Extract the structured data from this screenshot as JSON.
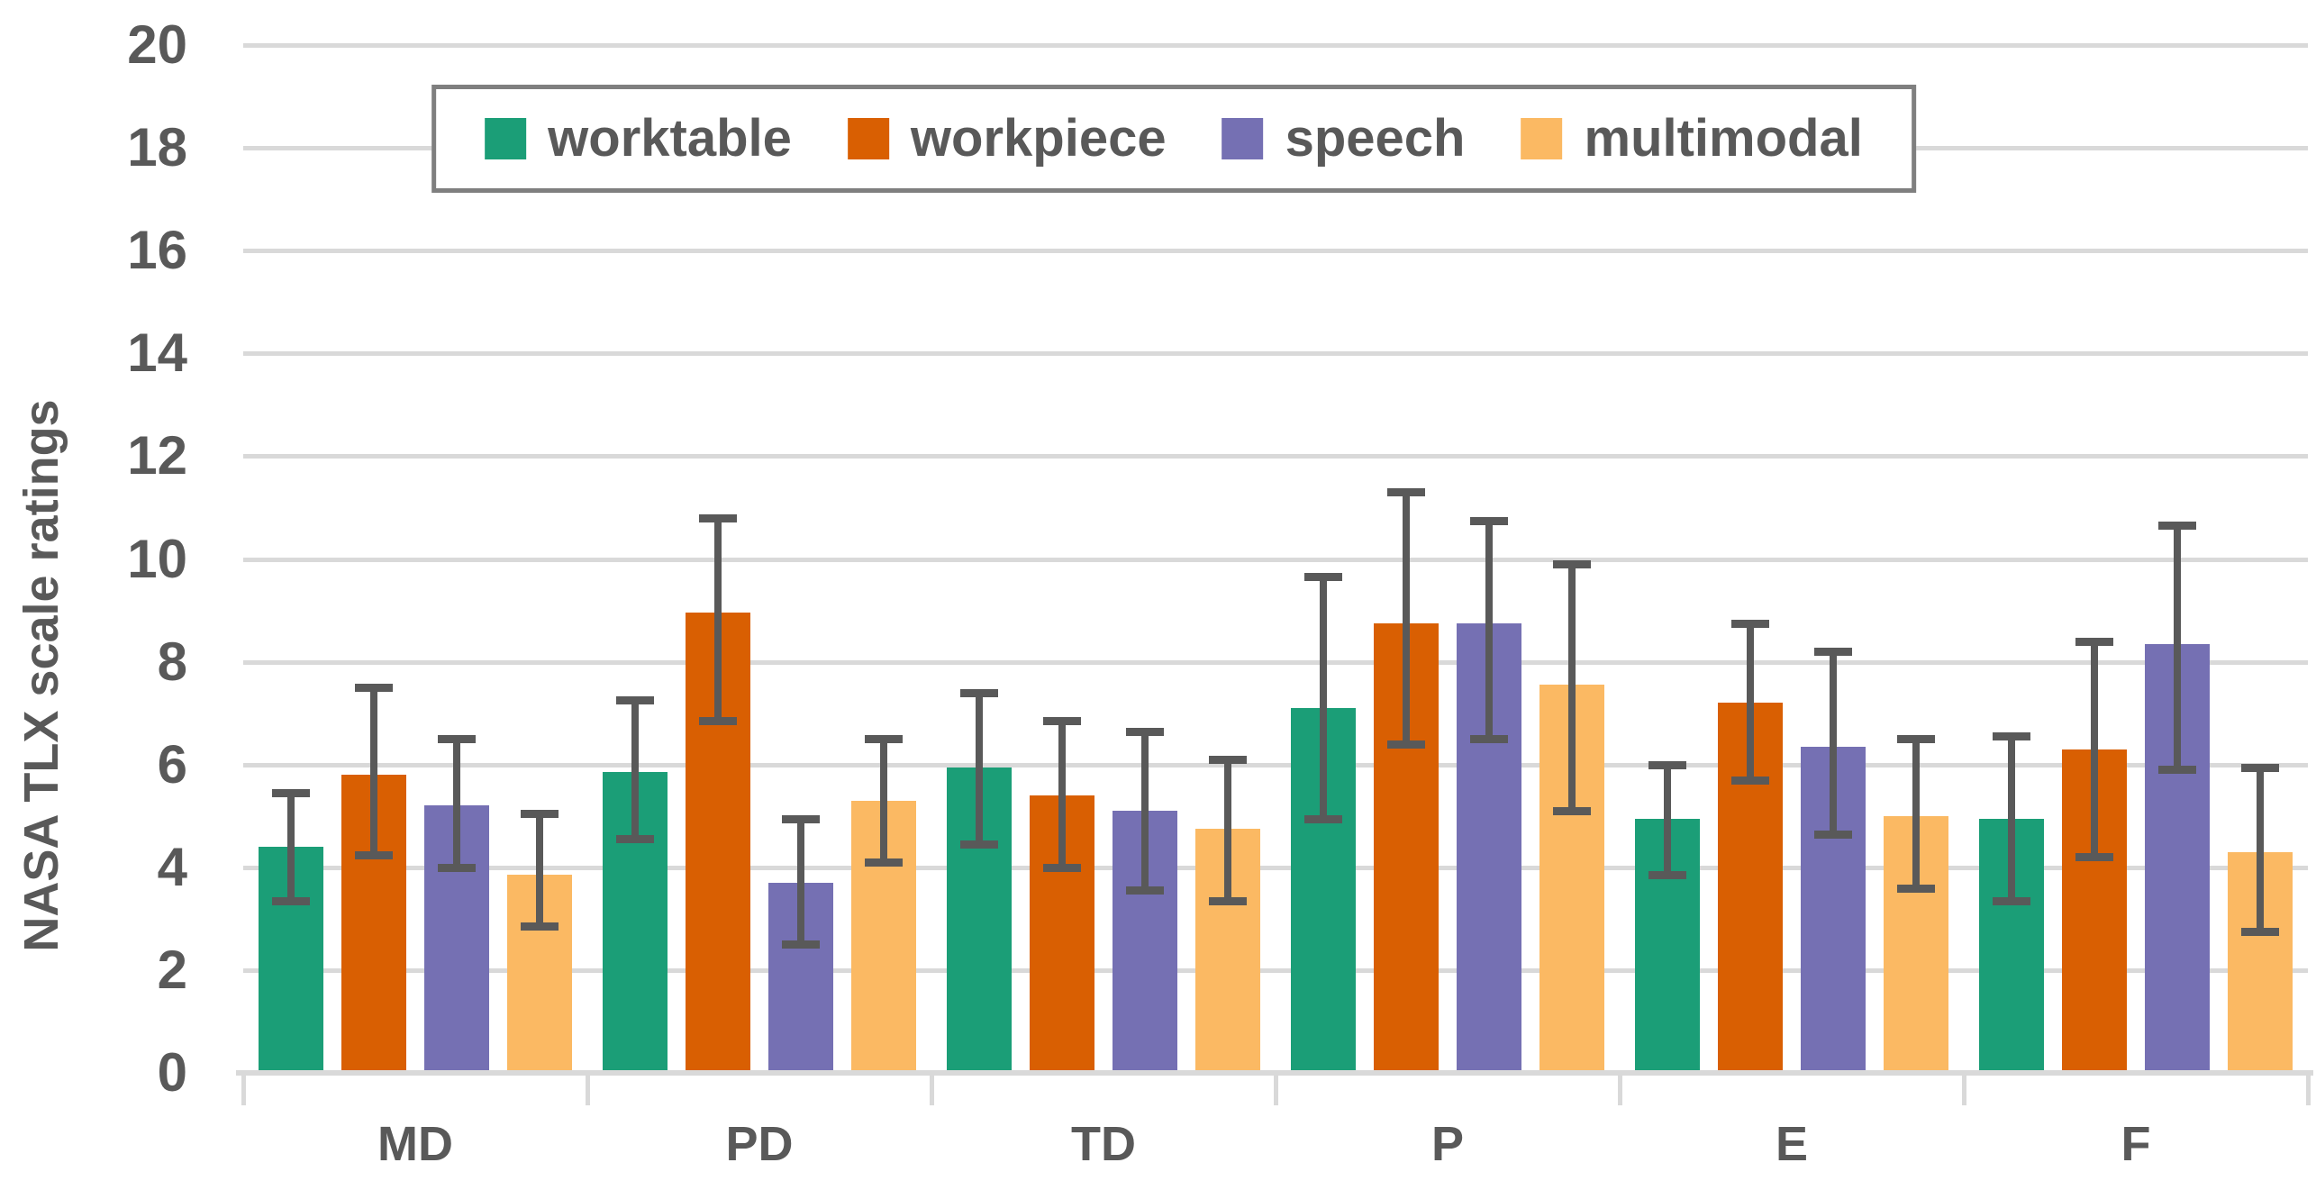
{
  "figure": {
    "background": "#FFFFFF",
    "text_color": "#595959",
    "gridline_color": "#D9D9D9",
    "axis_color": "#D9D9D9",
    "error_bar_color": "#595959",
    "legend_border_color": "#7F7F7F"
  },
  "chart_data": {
    "type": "bar",
    "title": "",
    "xlabel": "",
    "ylabel": "NASA TLX scale ratings",
    "ylim": [
      0,
      20
    ],
    "ytick_step": 2,
    "yticks": [
      0,
      2,
      4,
      6,
      8,
      10,
      12,
      14,
      16,
      18,
      20
    ],
    "grid": "horizontal",
    "legend_position": "top-center",
    "error_bars": true,
    "categories": [
      "MD",
      "PD",
      "TD",
      "P",
      "E",
      "F"
    ],
    "series": [
      {
        "name": "worktable",
        "color": "#1B9E77",
        "values": [
          4.4,
          5.85,
          5.95,
          7.1,
          4.95,
          4.95
        ],
        "error_low": [
          3.35,
          4.55,
          4.45,
          4.95,
          3.85,
          3.35
        ],
        "error_high": [
          5.45,
          7.25,
          7.4,
          9.65,
          6.0,
          6.55
        ]
      },
      {
        "name": "workpiece",
        "color": "#D95F02",
        "values": [
          5.8,
          8.95,
          5.4,
          8.75,
          7.2,
          6.3
        ],
        "error_low": [
          4.25,
          6.85,
          4.0,
          6.4,
          5.7,
          4.2
        ],
        "error_high": [
          7.5,
          10.8,
          6.85,
          11.3,
          8.75,
          8.4
        ]
      },
      {
        "name": "speech",
        "color": "#7570B3",
        "values": [
          5.2,
          3.7,
          5.1,
          8.75,
          6.35,
          8.35
        ],
        "error_low": [
          4.0,
          2.5,
          3.55,
          6.5,
          4.65,
          5.9
        ],
        "error_high": [
          6.5,
          4.95,
          6.65,
          10.75,
          8.2,
          10.65
        ]
      },
      {
        "name": "multimodal",
        "color": "#FBB963",
        "values": [
          3.85,
          5.3,
          4.75,
          7.55,
          5.0,
          4.3
        ],
        "error_low": [
          2.85,
          4.1,
          3.35,
          5.1,
          3.6,
          2.75
        ],
        "error_high": [
          5.05,
          6.5,
          6.1,
          9.9,
          6.5,
          5.95
        ]
      }
    ]
  }
}
